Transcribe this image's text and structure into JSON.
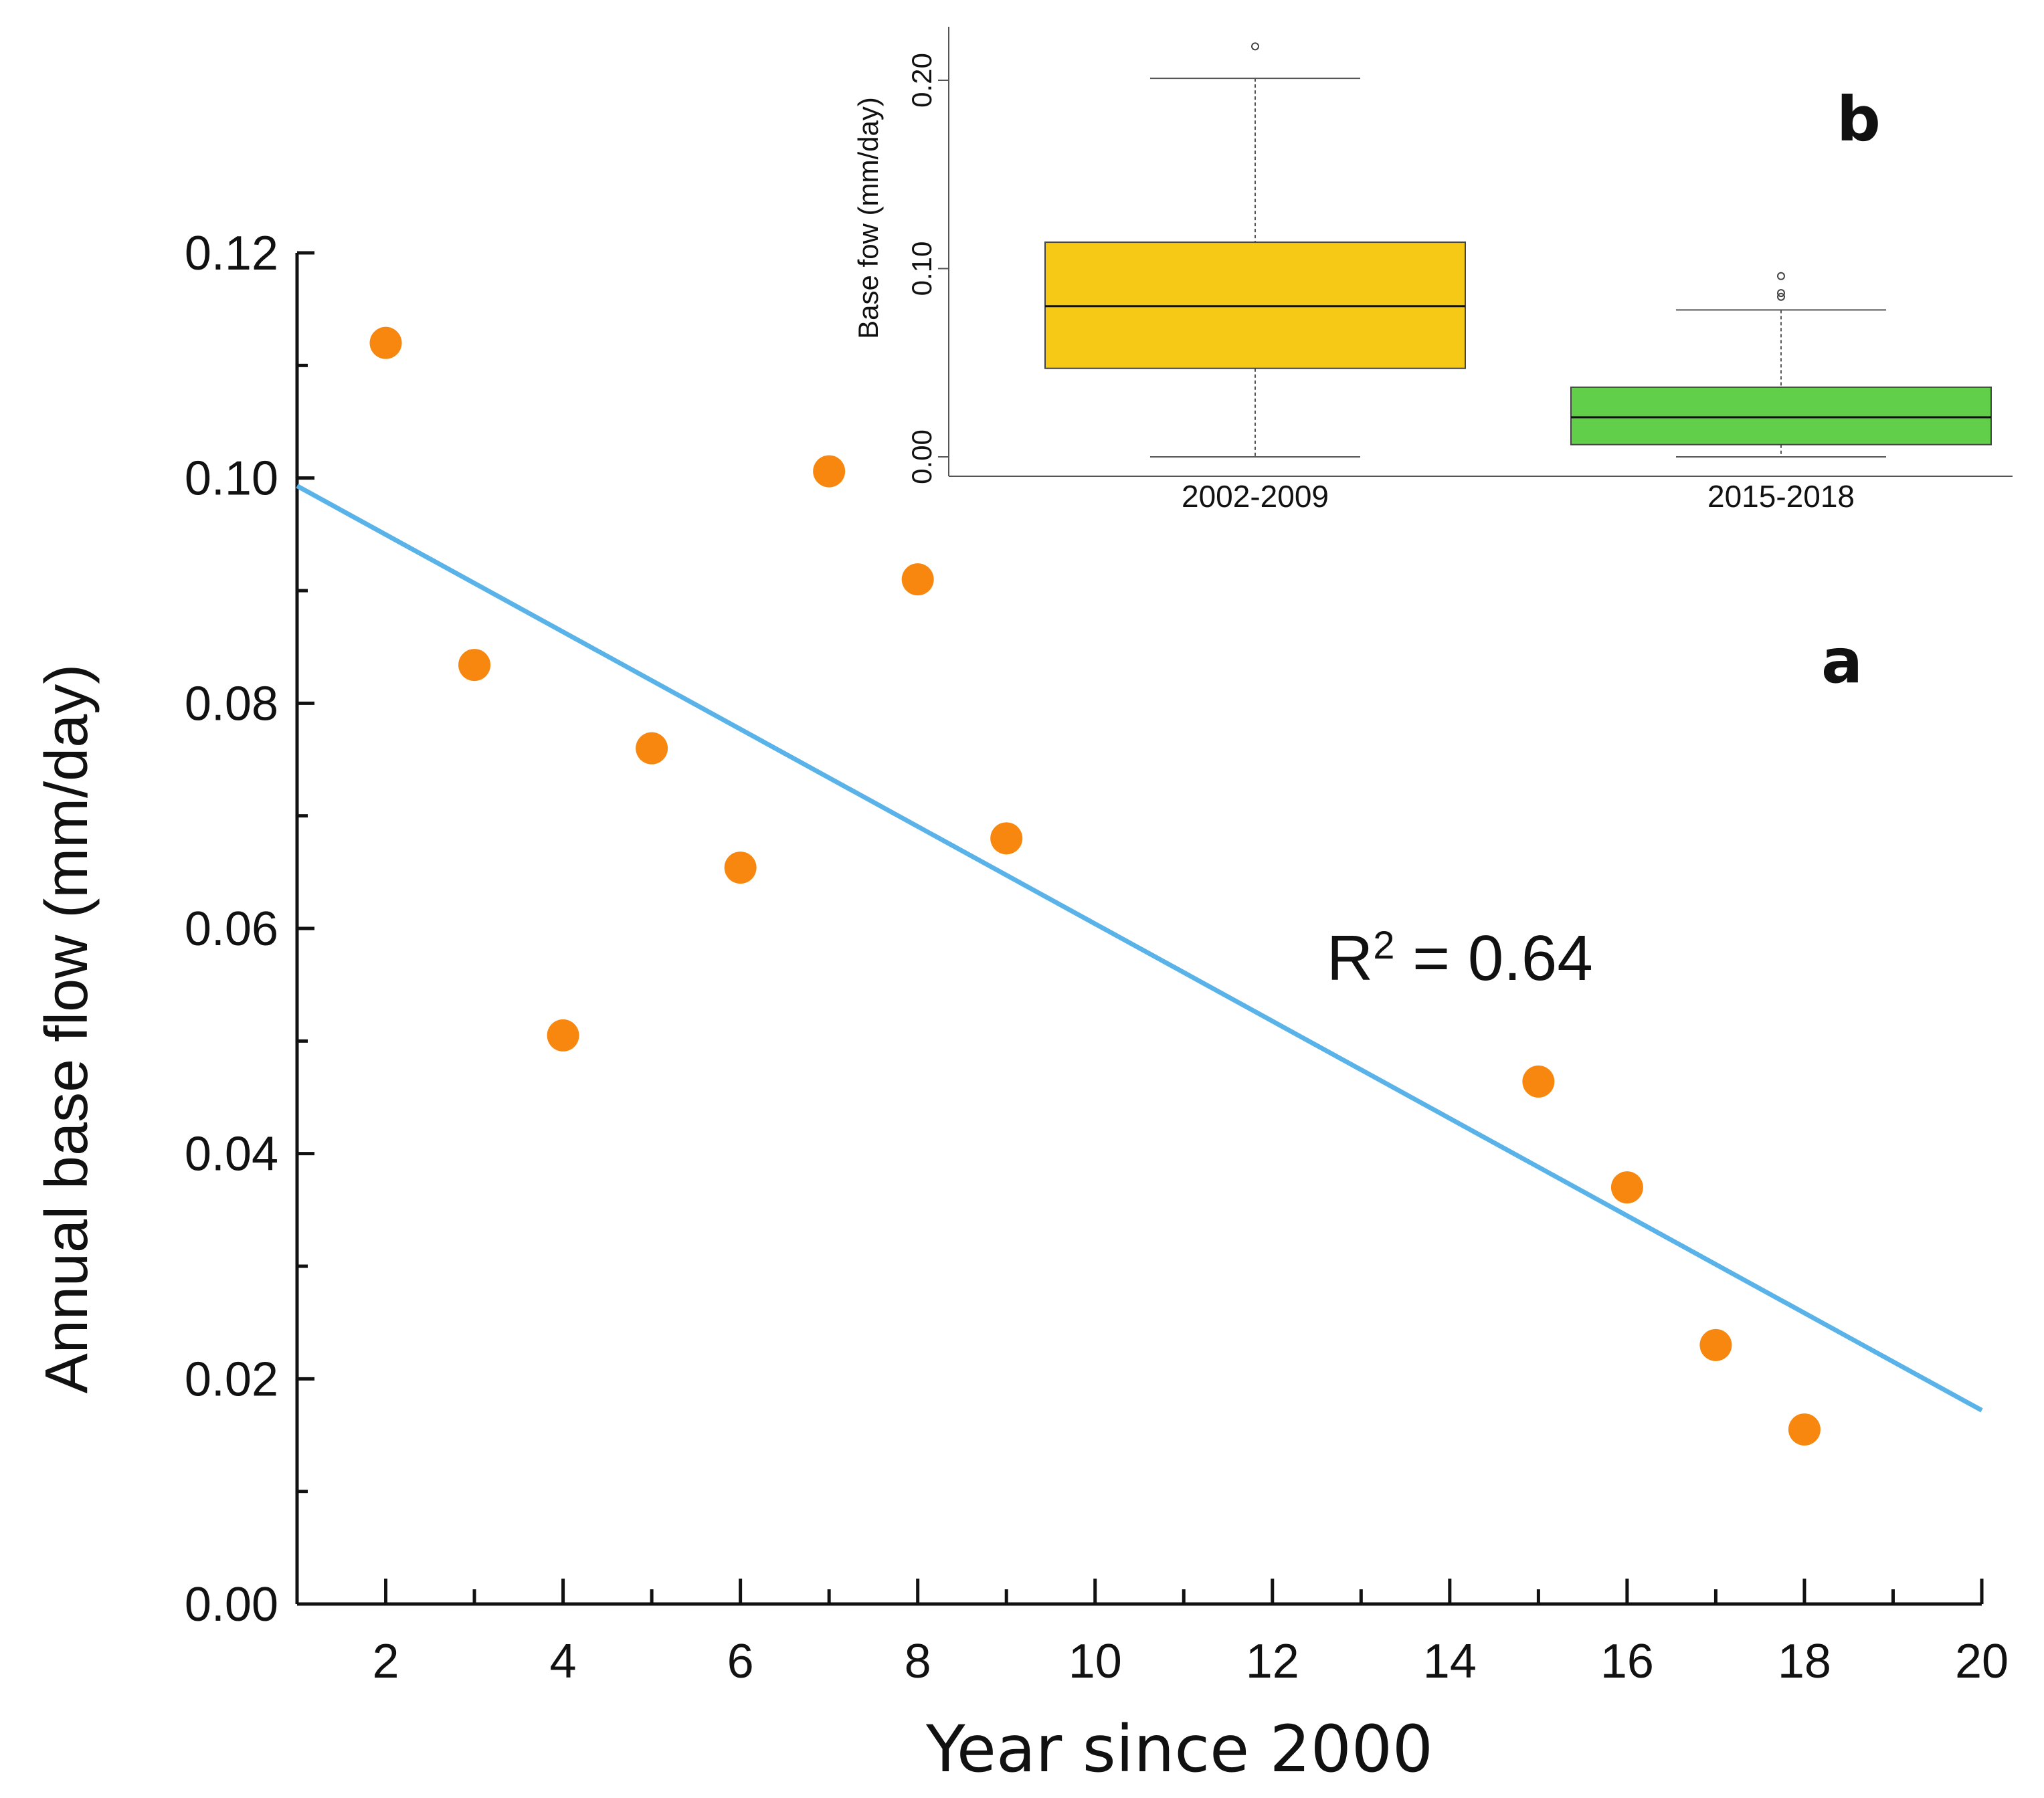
{
  "chart_data": [
    {
      "panel": "a",
      "type": "scatter",
      "xlabel": "Year since 2000",
      "ylabel": "Annual base flow (mm/day)",
      "xlim": [
        1,
        20
      ],
      "ylim": [
        0,
        0.12
      ],
      "xticks": [
        "2",
        "4",
        "6",
        "8",
        "10",
        "12",
        "14",
        "16",
        "18",
        "20"
      ],
      "yticks": [
        "0.00",
        "0.02",
        "0.04",
        "0.06",
        "0.08",
        "0.10",
        "0.12"
      ],
      "points": [
        {
          "x": 2,
          "y": 0.112
        },
        {
          "x": 3,
          "y": 0.0834
        },
        {
          "x": 4,
          "y": 0.0505
        },
        {
          "x": 5,
          "y": 0.076
        },
        {
          "x": 6,
          "y": 0.0654
        },
        {
          "x": 7,
          "y": 0.1006
        },
        {
          "x": 8,
          "y": 0.091
        },
        {
          "x": 9,
          "y": 0.068
        },
        {
          "x": 15,
          "y": 0.0464
        },
        {
          "x": 16,
          "y": 0.037
        },
        {
          "x": 17,
          "y": 0.023
        },
        {
          "x": 18,
          "y": 0.0155
        }
      ],
      "trend_line": {
        "x": [
          1,
          20
        ],
        "y": [
          0.0993,
          0.0172
        ]
      },
      "annotation": {
        "text": "R",
        "sup": "2",
        "rest": " = 0.64",
        "x": 14.8,
        "y": 0.0575
      },
      "colors": {
        "points": "#f7870f",
        "trend": "#5ab3e8"
      }
    },
    {
      "panel": "b",
      "type": "box",
      "ylabel": "Base fow (mm/day)",
      "ylim": [
        0,
        0.2
      ],
      "yticks": [
        "0.00",
        "0.10",
        "0.20"
      ],
      "categories": [
        "2002-2009",
        "2015-2018"
      ],
      "boxes": [
        {
          "category": "2002-2009",
          "whisker_low": 0.0,
          "q1": 0.047,
          "median": 0.08,
          "q3": 0.114,
          "whisker_high": 0.201,
          "outliers": [
            0.218
          ],
          "color": "#f5c915"
        },
        {
          "category": "2015-2018",
          "whisker_low": 0.0,
          "q1": 0.0065,
          "median": 0.021,
          "q3": 0.037,
          "whisker_high": 0.078,
          "outliers": [
            0.085,
            0.087,
            0.096
          ],
          "color": "#62cf4b"
        }
      ]
    }
  ],
  "labels": {
    "panel_a": "a",
    "panel_b": "b"
  }
}
